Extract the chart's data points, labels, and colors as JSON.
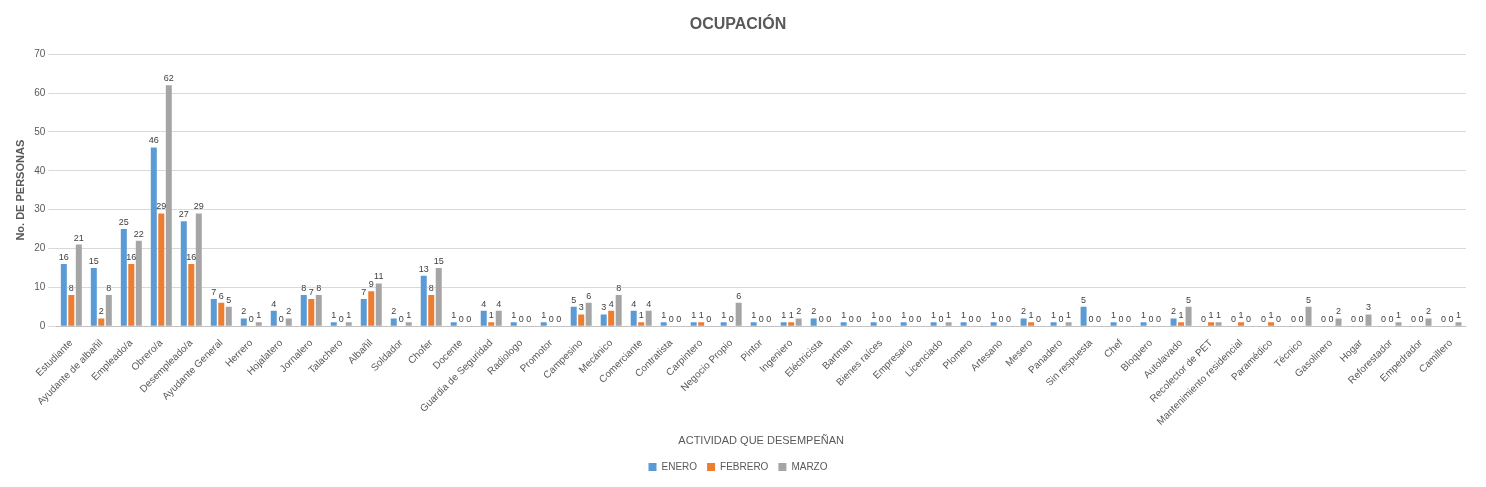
{
  "chart_data": {
    "type": "bar",
    "title": "OCUPACIÓN",
    "xlabel": "ACTIVIDAD QUE DESEMPEÑAN",
    "ylabel": "No. DE PERSONAS",
    "categories": [
      "Estudiante",
      "Ayudante de albañil",
      "Empleado/a",
      "Obrero/a",
      "Desempleado/a",
      "Ayudante General",
      "Herrero",
      "Hojalatero",
      "Jornalero",
      "Talachero",
      "Albañil",
      "Soldador",
      "Chofer",
      "Docente",
      "Guardia de Seguridad",
      "Radiologo",
      "Promotor",
      "Campesino",
      "Mecánico",
      "Comerciante",
      "Contratista",
      "Carpintero",
      "Negocio Propio",
      "Pintor",
      "Ingeniero",
      "Eléctricista",
      "Bartman",
      "Bienes raíces",
      "Empresario",
      "Licenciado",
      "Plomero",
      "Artesano",
      "Mesero",
      "Panadero",
      "Sin respuesta",
      "Chef",
      "Bloquero",
      "Autolavado",
      "Recolector de PET",
      "Mantenimiento residencial",
      "Paramédico",
      "Técnico",
      "Gasolinero",
      "Hogar",
      "Reforestador",
      "Empedrador",
      "Camillero"
    ],
    "series": [
      {
        "name": "ENERO",
        "color": "#5b9bd5",
        "values": [
          16,
          15,
          25,
          46,
          27,
          7,
          2,
          4,
          8,
          1,
          7,
          2,
          13,
          1,
          4,
          1,
          1,
          5,
          3,
          4,
          1,
          1,
          1,
          1,
          1,
          2,
          1,
          1,
          1,
          1,
          1,
          1,
          2,
          1,
          5,
          1,
          1,
          2,
          0,
          0,
          0,
          0,
          0,
          0,
          0,
          0,
          0
        ]
      },
      {
        "name": "FEBRERO",
        "color": "#ed7d31",
        "values": [
          8,
          2,
          16,
          29,
          16,
          6,
          0,
          0,
          7,
          0,
          9,
          0,
          8,
          0,
          1,
          0,
          0,
          3,
          4,
          1,
          0,
          1,
          0,
          0,
          1,
          0,
          0,
          0,
          0,
          0,
          0,
          0,
          1,
          0,
          0,
          0,
          0,
          1,
          1,
          1,
          1,
          0,
          0,
          0,
          0,
          0,
          0
        ]
      },
      {
        "name": "MARZO",
        "color": "#a5a5a5",
        "values": [
          21,
          8,
          22,
          62,
          29,
          5,
          1,
          2,
          8,
          1,
          11,
          1,
          15,
          0,
          4,
          0,
          0,
          6,
          8,
          4,
          0,
          0,
          6,
          0,
          2,
          0,
          0,
          0,
          0,
          1,
          0,
          0,
          0,
          1,
          0,
          0,
          0,
          5,
          1,
          0,
          0,
          5,
          2,
          3,
          1,
          2,
          1
        ]
      }
    ],
    "ylim": [
      0,
      70
    ],
    "yticks": [
      0,
      10,
      20,
      30,
      40,
      50,
      60,
      70
    ],
    "grid": "y",
    "legend": "bottom",
    "data_labels": true
  }
}
